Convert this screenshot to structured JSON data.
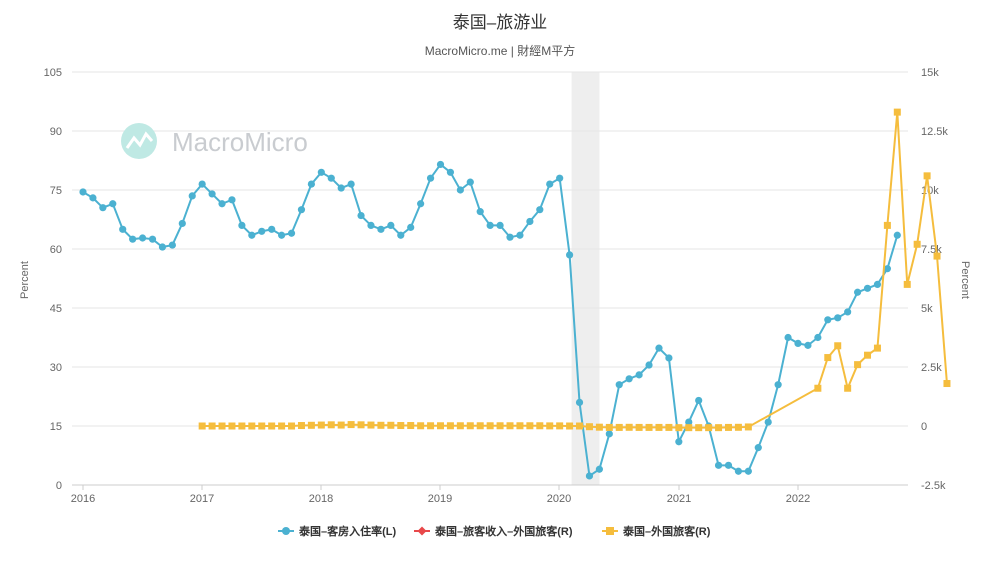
{
  "title": "泰国–旅游业",
  "subtitle": "MacroMicro.me | 財經M平方",
  "watermark": "MacroMicro",
  "colors": {
    "occupancy": "#4bb1d1",
    "revenue": "#e8484a",
    "arrivals": "#f5bd3d",
    "grid": "#e6e6e6",
    "recession": "#eeeeee"
  },
  "chart_data": {
    "type": "line",
    "x_ticks": [
      "2016",
      "2017",
      "2018",
      "2019",
      "2020",
      "2021",
      "2022"
    ],
    "left_axis": {
      "label": "Percent",
      "ylim": [
        0,
        105
      ],
      "ticks": [
        "0",
        "15",
        "30",
        "45",
        "60",
        "75",
        "90",
        "105"
      ]
    },
    "right_axis": {
      "label": "Percent",
      "ylim": [
        -2500,
        15000
      ],
      "ticks": [
        "-2.5k",
        "0",
        "2.5k",
        "5k",
        "7.5k",
        "10k",
        "12.5k",
        "15k"
      ]
    },
    "shaded_period": [
      "2020-02",
      "2020-04"
    ],
    "series": [
      {
        "name": "泰国–客房入住率(L)",
        "axis": "left",
        "start": "2016-01",
        "values": [
          74.5,
          73,
          70.5,
          71.5,
          65,
          62.5,
          62.8,
          62.5,
          60.5,
          61,
          66.5,
          73.5,
          76.5,
          74,
          71.5,
          72.5,
          66,
          63.5,
          64.5,
          65,
          63.5,
          64,
          70,
          76.5,
          79.5,
          78,
          75.5,
          76.5,
          68.5,
          66,
          65,
          66,
          63.5,
          65.5,
          71.5,
          78,
          81.5,
          79.5,
          75,
          77,
          69.5,
          66,
          66,
          63,
          63.5,
          67,
          70,
          76.5,
          78,
          58.5,
          21,
          2.3,
          4,
          13,
          25.5,
          27,
          28,
          30.5,
          34.8,
          32.3,
          11,
          16,
          21.5,
          15,
          5,
          5,
          3.5,
          3.5,
          9.5,
          16,
          25.5,
          37.5,
          36,
          35.5,
          37.5,
          42,
          42.5,
          44,
          49,
          50,
          51,
          55,
          63.5
        ]
      },
      {
        "name": "泰国–旅客收入–外国旅客(R)",
        "axis": "right",
        "values": []
      },
      {
        "name": "泰国–外国旅客(R)",
        "axis": "right",
        "start": "2017-01",
        "values": [
          0,
          0,
          0,
          0,
          0,
          0,
          0,
          0,
          0,
          0,
          20,
          30,
          40,
          50,
          40,
          60,
          50,
          40,
          30,
          30,
          20,
          20,
          10,
          10,
          10,
          10,
          10,
          10,
          10,
          10,
          10,
          10,
          10,
          10,
          10,
          5,
          5,
          0,
          0,
          -30,
          -50,
          -60,
          -60,
          -55,
          -60,
          -60,
          -60,
          -60,
          -70,
          -70,
          -70,
          -70,
          -70,
          -60,
          -55,
          -40,
          null,
          null,
          null,
          null,
          null,
          null,
          1600,
          2900,
          3400,
          1600,
          2600,
          3000,
          3300,
          8500,
          13300,
          6000,
          7700,
          10600,
          7200,
          1800
        ]
      }
    ]
  },
  "legend": [
    {
      "label": "泰国–客房入住率(L)",
      "color": "#4bb1d1",
      "marker": "circle"
    },
    {
      "label": "泰国–旅客收入–外国旅客(R)",
      "color": "#e8484a",
      "marker": "diamond"
    },
    {
      "label": "泰国–外国旅客(R)",
      "color": "#f5bd3d",
      "marker": "square"
    }
  ]
}
